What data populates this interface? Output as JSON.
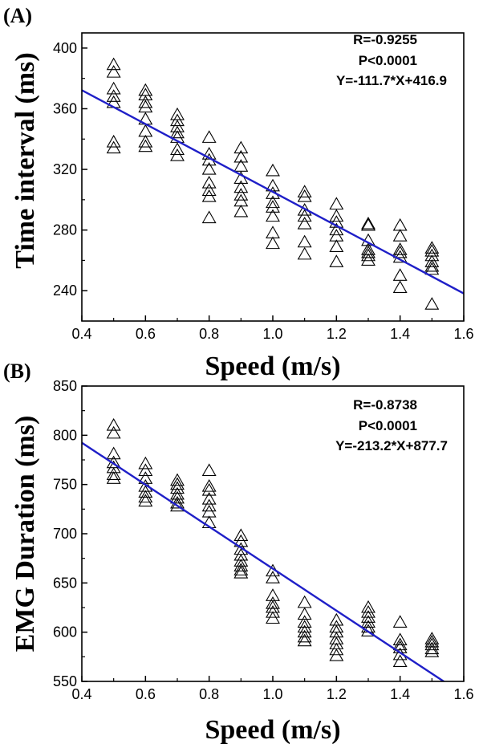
{
  "chart_data": [
    {
      "panel_label": "(A)",
      "type": "scatter",
      "xlabel": "Speed (m/s)",
      "ylabel": "Time interval (ms)",
      "xlim": [
        0.4,
        1.6
      ],
      "ylim": [
        220,
        410
      ],
      "xticks": [
        0.4,
        0.6,
        0.8,
        1.0,
        1.2,
        1.4,
        1.6
      ],
      "xtick_labels": [
        "0.4",
        "0.6",
        "0.8",
        "1.0",
        "1.2",
        "1.4",
        "1.6"
      ],
      "yticks": [
        240,
        280,
        320,
        360,
        400
      ],
      "ytick_labels": [
        "240",
        "280",
        "320",
        "360",
        "400"
      ],
      "marker": "open-triangle",
      "stats": [
        "R=-0.9255",
        "P<0.0001",
        "Y=-111.7*X+416.9"
      ],
      "fit": {
        "slope": -111.7,
        "intercept": 416.9,
        "color": "#1f1fc8"
      },
      "points": [
        {
          "x": 0.5,
          "y": 389
        },
        {
          "x": 0.5,
          "y": 384
        },
        {
          "x": 0.5,
          "y": 373
        },
        {
          "x": 0.5,
          "y": 368
        },
        {
          "x": 0.5,
          "y": 364
        },
        {
          "x": 0.5,
          "y": 338
        },
        {
          "x": 0.5,
          "y": 334
        },
        {
          "x": 0.6,
          "y": 372
        },
        {
          "x": 0.6,
          "y": 369
        },
        {
          "x": 0.6,
          "y": 364
        },
        {
          "x": 0.6,
          "y": 361
        },
        {
          "x": 0.6,
          "y": 353
        },
        {
          "x": 0.6,
          "y": 345
        },
        {
          "x": 0.6,
          "y": 338
        },
        {
          "x": 0.6,
          "y": 335
        },
        {
          "x": 0.7,
          "y": 356
        },
        {
          "x": 0.7,
          "y": 352
        },
        {
          "x": 0.7,
          "y": 348
        },
        {
          "x": 0.7,
          "y": 344
        },
        {
          "x": 0.7,
          "y": 341
        },
        {
          "x": 0.7,
          "y": 333
        },
        {
          "x": 0.7,
          "y": 329
        },
        {
          "x": 0.8,
          "y": 341
        },
        {
          "x": 0.8,
          "y": 330
        },
        {
          "x": 0.8,
          "y": 326
        },
        {
          "x": 0.8,
          "y": 320
        },
        {
          "x": 0.8,
          "y": 311
        },
        {
          "x": 0.8,
          "y": 306
        },
        {
          "x": 0.8,
          "y": 302
        },
        {
          "x": 0.8,
          "y": 288
        },
        {
          "x": 0.9,
          "y": 334
        },
        {
          "x": 0.9,
          "y": 328
        },
        {
          "x": 0.9,
          "y": 322
        },
        {
          "x": 0.9,
          "y": 314
        },
        {
          "x": 0.9,
          "y": 308
        },
        {
          "x": 0.9,
          "y": 303
        },
        {
          "x": 0.9,
          "y": 299
        },
        {
          "x": 0.9,
          "y": 292
        },
        {
          "x": 1.0,
          "y": 319
        },
        {
          "x": 1.0,
          "y": 309
        },
        {
          "x": 1.0,
          "y": 304
        },
        {
          "x": 1.0,
          "y": 298
        },
        {
          "x": 1.0,
          "y": 295
        },
        {
          "x": 1.0,
          "y": 289
        },
        {
          "x": 1.0,
          "y": 278
        },
        {
          "x": 1.0,
          "y": 271
        },
        {
          "x": 1.1,
          "y": 305
        },
        {
          "x": 1.1,
          "y": 302
        },
        {
          "x": 1.1,
          "y": 293
        },
        {
          "x": 1.1,
          "y": 289
        },
        {
          "x": 1.1,
          "y": 284
        },
        {
          "x": 1.1,
          "y": 272
        },
        {
          "x": 1.1,
          "y": 264
        },
        {
          "x": 1.2,
          "y": 297
        },
        {
          "x": 1.2,
          "y": 289
        },
        {
          "x": 1.2,
          "y": 285
        },
        {
          "x": 1.2,
          "y": 280
        },
        {
          "x": 1.2,
          "y": 276
        },
        {
          "x": 1.2,
          "y": 269
        },
        {
          "x": 1.2,
          "y": 259
        },
        {
          "x": 1.3,
          "y": 284
        },
        {
          "x": 1.3,
          "y": 283
        },
        {
          "x": 1.3,
          "y": 273
        },
        {
          "x": 1.3,
          "y": 267
        },
        {
          "x": 1.3,
          "y": 265
        },
        {
          "x": 1.3,
          "y": 263
        },
        {
          "x": 1.3,
          "y": 260
        },
        {
          "x": 1.4,
          "y": 283
        },
        {
          "x": 1.4,
          "y": 276
        },
        {
          "x": 1.4,
          "y": 267
        },
        {
          "x": 1.4,
          "y": 265
        },
        {
          "x": 1.4,
          "y": 262
        },
        {
          "x": 1.4,
          "y": 250
        },
        {
          "x": 1.4,
          "y": 242
        },
        {
          "x": 1.5,
          "y": 268
        },
        {
          "x": 1.5,
          "y": 266
        },
        {
          "x": 1.5,
          "y": 263
        },
        {
          "x": 1.5,
          "y": 259
        },
        {
          "x": 1.5,
          "y": 256
        },
        {
          "x": 1.5,
          "y": 254
        },
        {
          "x": 1.5,
          "y": 231
        }
      ]
    },
    {
      "panel_label": "(B)",
      "type": "scatter",
      "xlabel": "Speed (m/s)",
      "ylabel": "EMG Duration (ms)",
      "xlim": [
        0.4,
        1.6
      ],
      "ylim": [
        550,
        850
      ],
      "xticks": [
        0.4,
        0.6,
        0.8,
        1.0,
        1.2,
        1.4,
        1.6
      ],
      "xtick_labels": [
        "0.4",
        "0.6",
        "0.8",
        "1.0",
        "1.2",
        "1.4",
        "1.6"
      ],
      "yticks": [
        550,
        600,
        650,
        700,
        750,
        800,
        850
      ],
      "ytick_labels": [
        "550",
        "600",
        "650",
        "700",
        "750",
        "800",
        "850"
      ],
      "marker": "open-triangle",
      "stats": [
        "R=-0.8738",
        "P<0.0001",
        "Y=-213.2*X+877.7"
      ],
      "fit": {
        "slope": -213.2,
        "intercept": 877.7,
        "color": "#1f1fc8"
      },
      "points": [
        {
          "x": 0.5,
          "y": 810
        },
        {
          "x": 0.5,
          "y": 802
        },
        {
          "x": 0.5,
          "y": 781
        },
        {
          "x": 0.5,
          "y": 772
        },
        {
          "x": 0.5,
          "y": 767
        },
        {
          "x": 0.5,
          "y": 760
        },
        {
          "x": 0.5,
          "y": 756
        },
        {
          "x": 0.6,
          "y": 771
        },
        {
          "x": 0.6,
          "y": 764
        },
        {
          "x": 0.6,
          "y": 756
        },
        {
          "x": 0.6,
          "y": 748
        },
        {
          "x": 0.6,
          "y": 742
        },
        {
          "x": 0.6,
          "y": 737
        },
        {
          "x": 0.6,
          "y": 733
        },
        {
          "x": 0.7,
          "y": 754
        },
        {
          "x": 0.7,
          "y": 750
        },
        {
          "x": 0.7,
          "y": 746
        },
        {
          "x": 0.7,
          "y": 740
        },
        {
          "x": 0.7,
          "y": 736
        },
        {
          "x": 0.7,
          "y": 731
        },
        {
          "x": 0.7,
          "y": 728
        },
        {
          "x": 0.8,
          "y": 764
        },
        {
          "x": 0.8,
          "y": 748
        },
        {
          "x": 0.8,
          "y": 744
        },
        {
          "x": 0.8,
          "y": 735
        },
        {
          "x": 0.8,
          "y": 728
        },
        {
          "x": 0.8,
          "y": 722
        },
        {
          "x": 0.8,
          "y": 711
        },
        {
          "x": 0.9,
          "y": 698
        },
        {
          "x": 0.9,
          "y": 692
        },
        {
          "x": 0.9,
          "y": 684
        },
        {
          "x": 0.9,
          "y": 678
        },
        {
          "x": 0.9,
          "y": 672
        },
        {
          "x": 0.9,
          "y": 667
        },
        {
          "x": 0.9,
          "y": 663
        },
        {
          "x": 0.9,
          "y": 660
        },
        {
          "x": 1.0,
          "y": 662
        },
        {
          "x": 1.0,
          "y": 655
        },
        {
          "x": 1.0,
          "y": 637
        },
        {
          "x": 1.0,
          "y": 629
        },
        {
          "x": 1.0,
          "y": 625
        },
        {
          "x": 1.0,
          "y": 620
        },
        {
          "x": 1.0,
          "y": 614
        },
        {
          "x": 1.1,
          "y": 630
        },
        {
          "x": 1.1,
          "y": 618
        },
        {
          "x": 1.1,
          "y": 610
        },
        {
          "x": 1.1,
          "y": 605
        },
        {
          "x": 1.1,
          "y": 600
        },
        {
          "x": 1.1,
          "y": 595
        },
        {
          "x": 1.1,
          "y": 591
        },
        {
          "x": 1.2,
          "y": 612
        },
        {
          "x": 1.2,
          "y": 605
        },
        {
          "x": 1.2,
          "y": 600
        },
        {
          "x": 1.2,
          "y": 593
        },
        {
          "x": 1.2,
          "y": 588
        },
        {
          "x": 1.2,
          "y": 582
        },
        {
          "x": 1.2,
          "y": 576
        },
        {
          "x": 1.3,
          "y": 625
        },
        {
          "x": 1.3,
          "y": 620
        },
        {
          "x": 1.3,
          "y": 615
        },
        {
          "x": 1.3,
          "y": 610
        },
        {
          "x": 1.3,
          "y": 605
        },
        {
          "x": 1.3,
          "y": 601
        },
        {
          "x": 1.4,
          "y": 610
        },
        {
          "x": 1.4,
          "y": 592
        },
        {
          "x": 1.4,
          "y": 587
        },
        {
          "x": 1.4,
          "y": 584
        },
        {
          "x": 1.4,
          "y": 577
        },
        {
          "x": 1.4,
          "y": 570
        },
        {
          "x": 1.5,
          "y": 593
        },
        {
          "x": 1.5,
          "y": 590
        },
        {
          "x": 1.5,
          "y": 587
        },
        {
          "x": 1.5,
          "y": 583
        },
        {
          "x": 1.5,
          "y": 580
        }
      ]
    }
  ]
}
